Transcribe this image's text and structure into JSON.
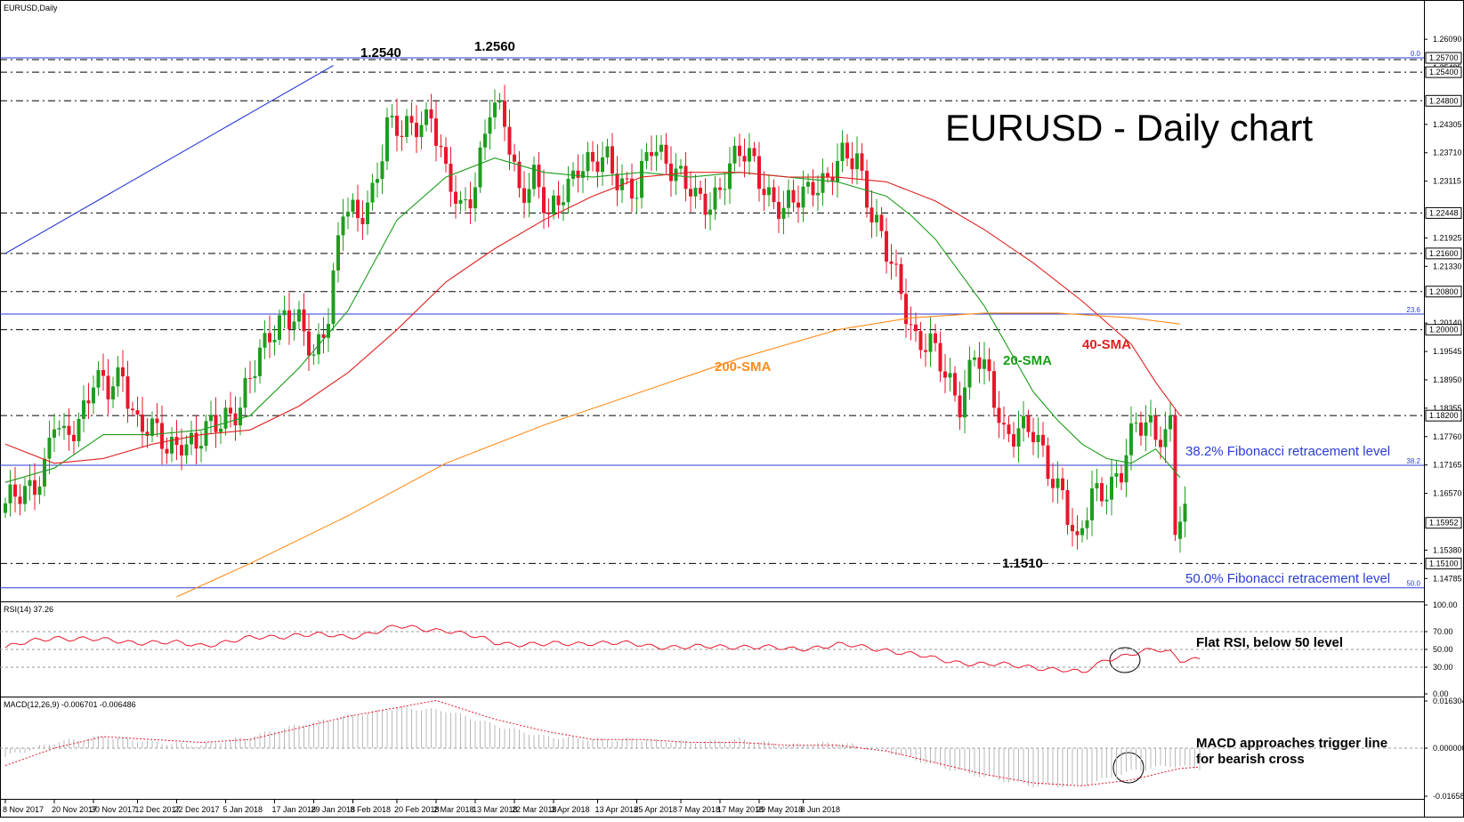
{
  "chart_data": [
    {
      "type": "candlestick",
      "symbol_label": "EURUSD,Daily",
      "title": "EURUSD - Daily chart",
      "ylim": [
        1.1438,
        1.2654
      ],
      "x_ticks": [
        "8 Nov 2017",
        "20 Nov 2017",
        "30 Nov 2017",
        "12 Dec 2017",
        "22 Dec 2017",
        "5 Jan 2018",
        "17 Jan 2018",
        "29 Jan 2018",
        "8 Feb 2018",
        "20 Feb 2018",
        "2 Mar 2018",
        "13 Mar 2018",
        "22 Mar 2018",
        "3 Apr 2018",
        "13 Apr 2018",
        "25 Apr 2018",
        "7 May 2018",
        "17 May 2018",
        "29 May 2018",
        "8 Jun 2018"
      ],
      "y_ticks": [
        "1.26090",
        "1.25495",
        "1.24305",
        "1.23710",
        "1.23115",
        "1.21925",
        "1.21330",
        "1.20140",
        "1.19545",
        "1.18950",
        "1.18355",
        "1.17760",
        "1.17165",
        "1.16570",
        "1.15380",
        "1.14785"
      ],
      "price_boxes": [
        {
          "label": "1.25700",
          "value": 1.257
        },
        {
          "label": "1.25400",
          "value": 1.254
        },
        {
          "label": "1.24800",
          "value": 1.248
        },
        {
          "label": "1.22448",
          "value": 1.22448
        },
        {
          "label": "1.21600",
          "value": 1.216
        },
        {
          "label": "1.20800",
          "value": 1.208
        },
        {
          "label": "1.20000",
          "value": 1.2
        },
        {
          "label": "1.18200",
          "value": 1.182
        },
        {
          "label": "1.15952",
          "value": 1.15952
        },
        {
          "label": "1.15100",
          "value": 1.151
        }
      ],
      "horizontal_levels": {
        "dashed": [
          1.254,
          1.248,
          1.22448,
          1.216,
          1.208,
          1.2,
          1.182,
          1.151
        ],
        "fib_lines": [
          {
            "value": 1.257,
            "tag": "0.0"
          },
          {
            "value": 1.2033,
            "tag": "23.6"
          },
          {
            "value": 1.1716,
            "tag": "38.2"
          },
          {
            "value": 1.1459,
            "tag": "50.0"
          }
        ]
      },
      "annotations": [
        {
          "text": "1.2540",
          "value": 1.254
        },
        {
          "text": "1.2560",
          "value": 1.256
        },
        {
          "text": "1.1510",
          "value": 1.151
        },
        {
          "text": "200-SMA",
          "color": "#ff8c1a"
        },
        {
          "text": "20-SMA",
          "color": "#1a9c1a"
        },
        {
          "text": "40-SMA",
          "color": "#e02020"
        },
        {
          "text": "38.2% Fibonacci retracement level",
          "color": "#2a3cd6"
        },
        {
          "text": "50.0% Fibonacci retracement level",
          "color": "#2a3cd6"
        }
      ],
      "anchors": [
        [
          0,
          1.162
        ],
        [
          5,
          1.168
        ],
        [
          8,
          1.171
        ],
        [
          10,
          1.18
        ],
        [
          12,
          1.176
        ],
        [
          15,
          1.182
        ],
        [
          18,
          1.19
        ],
        [
          21,
          1.186
        ],
        [
          24,
          1.191
        ],
        [
          27,
          1.181
        ],
        [
          30,
          1.178
        ],
        [
          33,
          1.175
        ],
        [
          36,
          1.178
        ],
        [
          39,
          1.175
        ],
        [
          42,
          1.179
        ],
        [
          45,
          1.183
        ],
        [
          48,
          1.184
        ],
        [
          51,
          1.191
        ],
        [
          54,
          1.2
        ],
        [
          57,
          1.204
        ],
        [
          60,
          1.2
        ],
        [
          63,
          1.194
        ],
        [
          66,
          1.205
        ],
        [
          69,
          1.225
        ],
        [
          72,
          1.222
        ],
        [
          75,
          1.23
        ],
        [
          78,
          1.243
        ],
        [
          81,
          1.24
        ],
        [
          84,
          1.244
        ],
        [
          87,
          1.246
        ],
        [
          90,
          1.231
        ],
        [
          93,
          1.225
        ],
        [
          96,
          1.232
        ],
        [
          99,
          1.246
        ],
        [
          102,
          1.243
        ],
        [
          105,
          1.23
        ],
        [
          108,
          1.232
        ],
        [
          111,
          1.222
        ],
        [
          114,
          1.23
        ],
        [
          117,
          1.235
        ],
        [
          120,
          1.233
        ],
        [
          123,
          1.236
        ],
        [
          126,
          1.232
        ],
        [
          129,
          1.228
        ],
        [
          132,
          1.238
        ],
        [
          135,
          1.237
        ],
        [
          138,
          1.232
        ],
        [
          141,
          1.226
        ],
        [
          144,
          1.227
        ],
        [
          147,
          1.233
        ],
        [
          150,
          1.236
        ],
        [
          153,
          1.235
        ],
        [
          156,
          1.229
        ],
        [
          159,
          1.224
        ],
        [
          162,
          1.227
        ],
        [
          165,
          1.232
        ],
        [
          168,
          1.231
        ],
        [
          171,
          1.235
        ],
        [
          174,
          1.237
        ],
        [
          177,
          1.225
        ],
        [
          180,
          1.215
        ],
        [
          183,
          1.208
        ],
        [
          186,
          1.199
        ],
        [
          189,
          1.196
        ],
        [
          192,
          1.19
        ],
        [
          195,
          1.186
        ],
        [
          198,
          1.195
        ],
        [
          201,
          1.188
        ],
        [
          204,
          1.179
        ],
        [
          207,
          1.18
        ],
        [
          210,
          1.177
        ],
        [
          213,
          1.171
        ],
        [
          216,
          1.167
        ],
        [
          219,
          1.153
        ],
        [
          222,
          1.165
        ],
        [
          225,
          1.168
        ],
        [
          228,
          1.17
        ],
        [
          231,
          1.179
        ],
        [
          234,
          1.181
        ],
        [
          237,
          1.178
        ],
        [
          238,
          1.18
        ],
        [
          239,
          1.157
        ],
        [
          240,
          1.159
        ],
        [
          241,
          1.1595
        ]
      ],
      "series": [
        {
          "name": "20-SMA",
          "color": "#1a9c1a",
          "x": [
            0,
            10,
            20,
            30,
            40,
            50,
            60,
            70,
            80,
            90,
            100,
            110,
            120,
            130,
            140,
            150,
            160,
            170,
            180,
            185,
            190,
            195,
            200,
            205,
            210,
            215,
            220,
            225,
            230,
            235,
            240
          ],
          "values": [
            1.168,
            1.171,
            1.178,
            1.178,
            1.179,
            1.182,
            1.192,
            1.204,
            1.223,
            1.232,
            1.236,
            1.233,
            1.232,
            1.233,
            1.232,
            1.233,
            1.232,
            1.231,
            1.228,
            1.224,
            1.219,
            1.212,
            1.205,
            1.196,
            1.187,
            1.181,
            1.176,
            1.173,
            1.172,
            1.175,
            1.169
          ]
        },
        {
          "name": "40-SMA",
          "color": "#e02020",
          "x": [
            0,
            10,
            20,
            30,
            40,
            50,
            60,
            70,
            80,
            90,
            100,
            110,
            120,
            130,
            140,
            150,
            160,
            170,
            180,
            190,
            200,
            210,
            220,
            230,
            235,
            240
          ],
          "values": [
            1.176,
            1.172,
            1.173,
            1.176,
            1.178,
            1.179,
            1.184,
            1.191,
            1.2,
            1.21,
            1.217,
            1.223,
            1.228,
            1.232,
            1.233,
            1.233,
            1.232,
            1.232,
            1.231,
            1.227,
            1.221,
            1.214,
            1.206,
            1.197,
            1.189,
            1.182
          ]
        },
        {
          "name": "200-SMA",
          "color": "#ff8c1a",
          "x": [
            35,
            50,
            70,
            90,
            110,
            130,
            150,
            170,
            185,
            200,
            215,
            230,
            240
          ],
          "values": [
            1.144,
            1.151,
            1.161,
            1.172,
            1.18,
            1.187,
            1.194,
            1.2,
            1.2025,
            1.2035,
            1.2035,
            1.2025,
            1.2012
          ]
        },
        {
          "name": "resistance-trendline",
          "color": "#2a3cd6",
          "x": [
            0,
            67
          ],
          "values": [
            1.216,
            1.2554
          ]
        }
      ],
      "date_positions": [
        0,
        10,
        18,
        27,
        35,
        45,
        55,
        63,
        71,
        80,
        88,
        96,
        104,
        112,
        121,
        129,
        138,
        146,
        154,
        163
      ]
    },
    {
      "type": "line",
      "indicator_label": "RSI(14) 37.26",
      "ylim": [
        0,
        100
      ],
      "y_ticks": [
        "100.00",
        "70.00",
        "50.00",
        "30.00",
        "0.00"
      ],
      "levels": [
        70,
        50,
        30
      ],
      "note": "Flat RSI, below 50 level",
      "anchors": [
        [
          0,
          52
        ],
        [
          10,
          64
        ],
        [
          20,
          60
        ],
        [
          30,
          58
        ],
        [
          40,
          55
        ],
        [
          50,
          62
        ],
        [
          60,
          67
        ],
        [
          70,
          64
        ],
        [
          80,
          75
        ],
        [
          90,
          72
        ],
        [
          100,
          58
        ],
        [
          110,
          55
        ],
        [
          120,
          58
        ],
        [
          130,
          55
        ],
        [
          140,
          52
        ],
        [
          150,
          54
        ],
        [
          160,
          50
        ],
        [
          170,
          55
        ],
        [
          180,
          50
        ],
        [
          190,
          39
        ],
        [
          200,
          33
        ],
        [
          210,
          31
        ],
        [
          220,
          23
        ],
        [
          225,
          40
        ],
        [
          235,
          49
        ],
        [
          238,
          47
        ],
        [
          240,
          39
        ],
        [
          244,
          40
        ]
      ]
    },
    {
      "type": "bar",
      "indicator_label": "MACD(12,26,9) -0.006701 -0.006486",
      "ylim": [
        -0.016588,
        0.016304
      ],
      "y_ticks": [
        "0.016304",
        "0.000000",
        "-0.016588"
      ],
      "note": "MACD approaches trigger line\nfor bearish cross",
      "histogram_anchors": [
        [
          0,
          -0.003
        ],
        [
          10,
          0.002
        ],
        [
          20,
          0.004
        ],
        [
          30,
          0.002
        ],
        [
          40,
          0.001
        ],
        [
          50,
          0.004
        ],
        [
          60,
          0.008
        ],
        [
          70,
          0.011
        ],
        [
          80,
          0.014
        ],
        [
          90,
          0.013
        ],
        [
          100,
          0.008
        ],
        [
          110,
          0.004
        ],
        [
          120,
          0.003
        ],
        [
          130,
          0.003
        ],
        [
          140,
          0.002
        ],
        [
          150,
          0.003
        ],
        [
          160,
          0.001
        ],
        [
          170,
          0.002
        ],
        [
          180,
          -0.001
        ],
        [
          190,
          -0.006
        ],
        [
          200,
          -0.01
        ],
        [
          210,
          -0.013
        ],
        [
          220,
          -0.013
        ],
        [
          230,
          -0.008
        ],
        [
          238,
          -0.006
        ],
        [
          244,
          -0.007
        ]
      ],
      "signal_anchors": [
        [
          0,
          -0.006
        ],
        [
          10,
          0.0
        ],
        [
          20,
          0.004
        ],
        [
          30,
          0.003
        ],
        [
          40,
          0.002
        ],
        [
          50,
          0.003
        ],
        [
          60,
          0.007
        ],
        [
          70,
          0.011
        ],
        [
          80,
          0.014
        ],
        [
          88,
          0.0165
        ],
        [
          100,
          0.01
        ],
        [
          110,
          0.006
        ],
        [
          120,
          0.003
        ],
        [
          130,
          0.003
        ],
        [
          140,
          0.002
        ],
        [
          150,
          0.002
        ],
        [
          160,
          0.001
        ],
        [
          170,
          0.001
        ],
        [
          180,
          -0.001
        ],
        [
          190,
          -0.005
        ],
        [
          200,
          -0.009
        ],
        [
          210,
          -0.012
        ],
        [
          220,
          -0.013
        ],
        [
          230,
          -0.011
        ],
        [
          240,
          -0.007
        ],
        [
          244,
          -0.0065
        ]
      ]
    }
  ]
}
